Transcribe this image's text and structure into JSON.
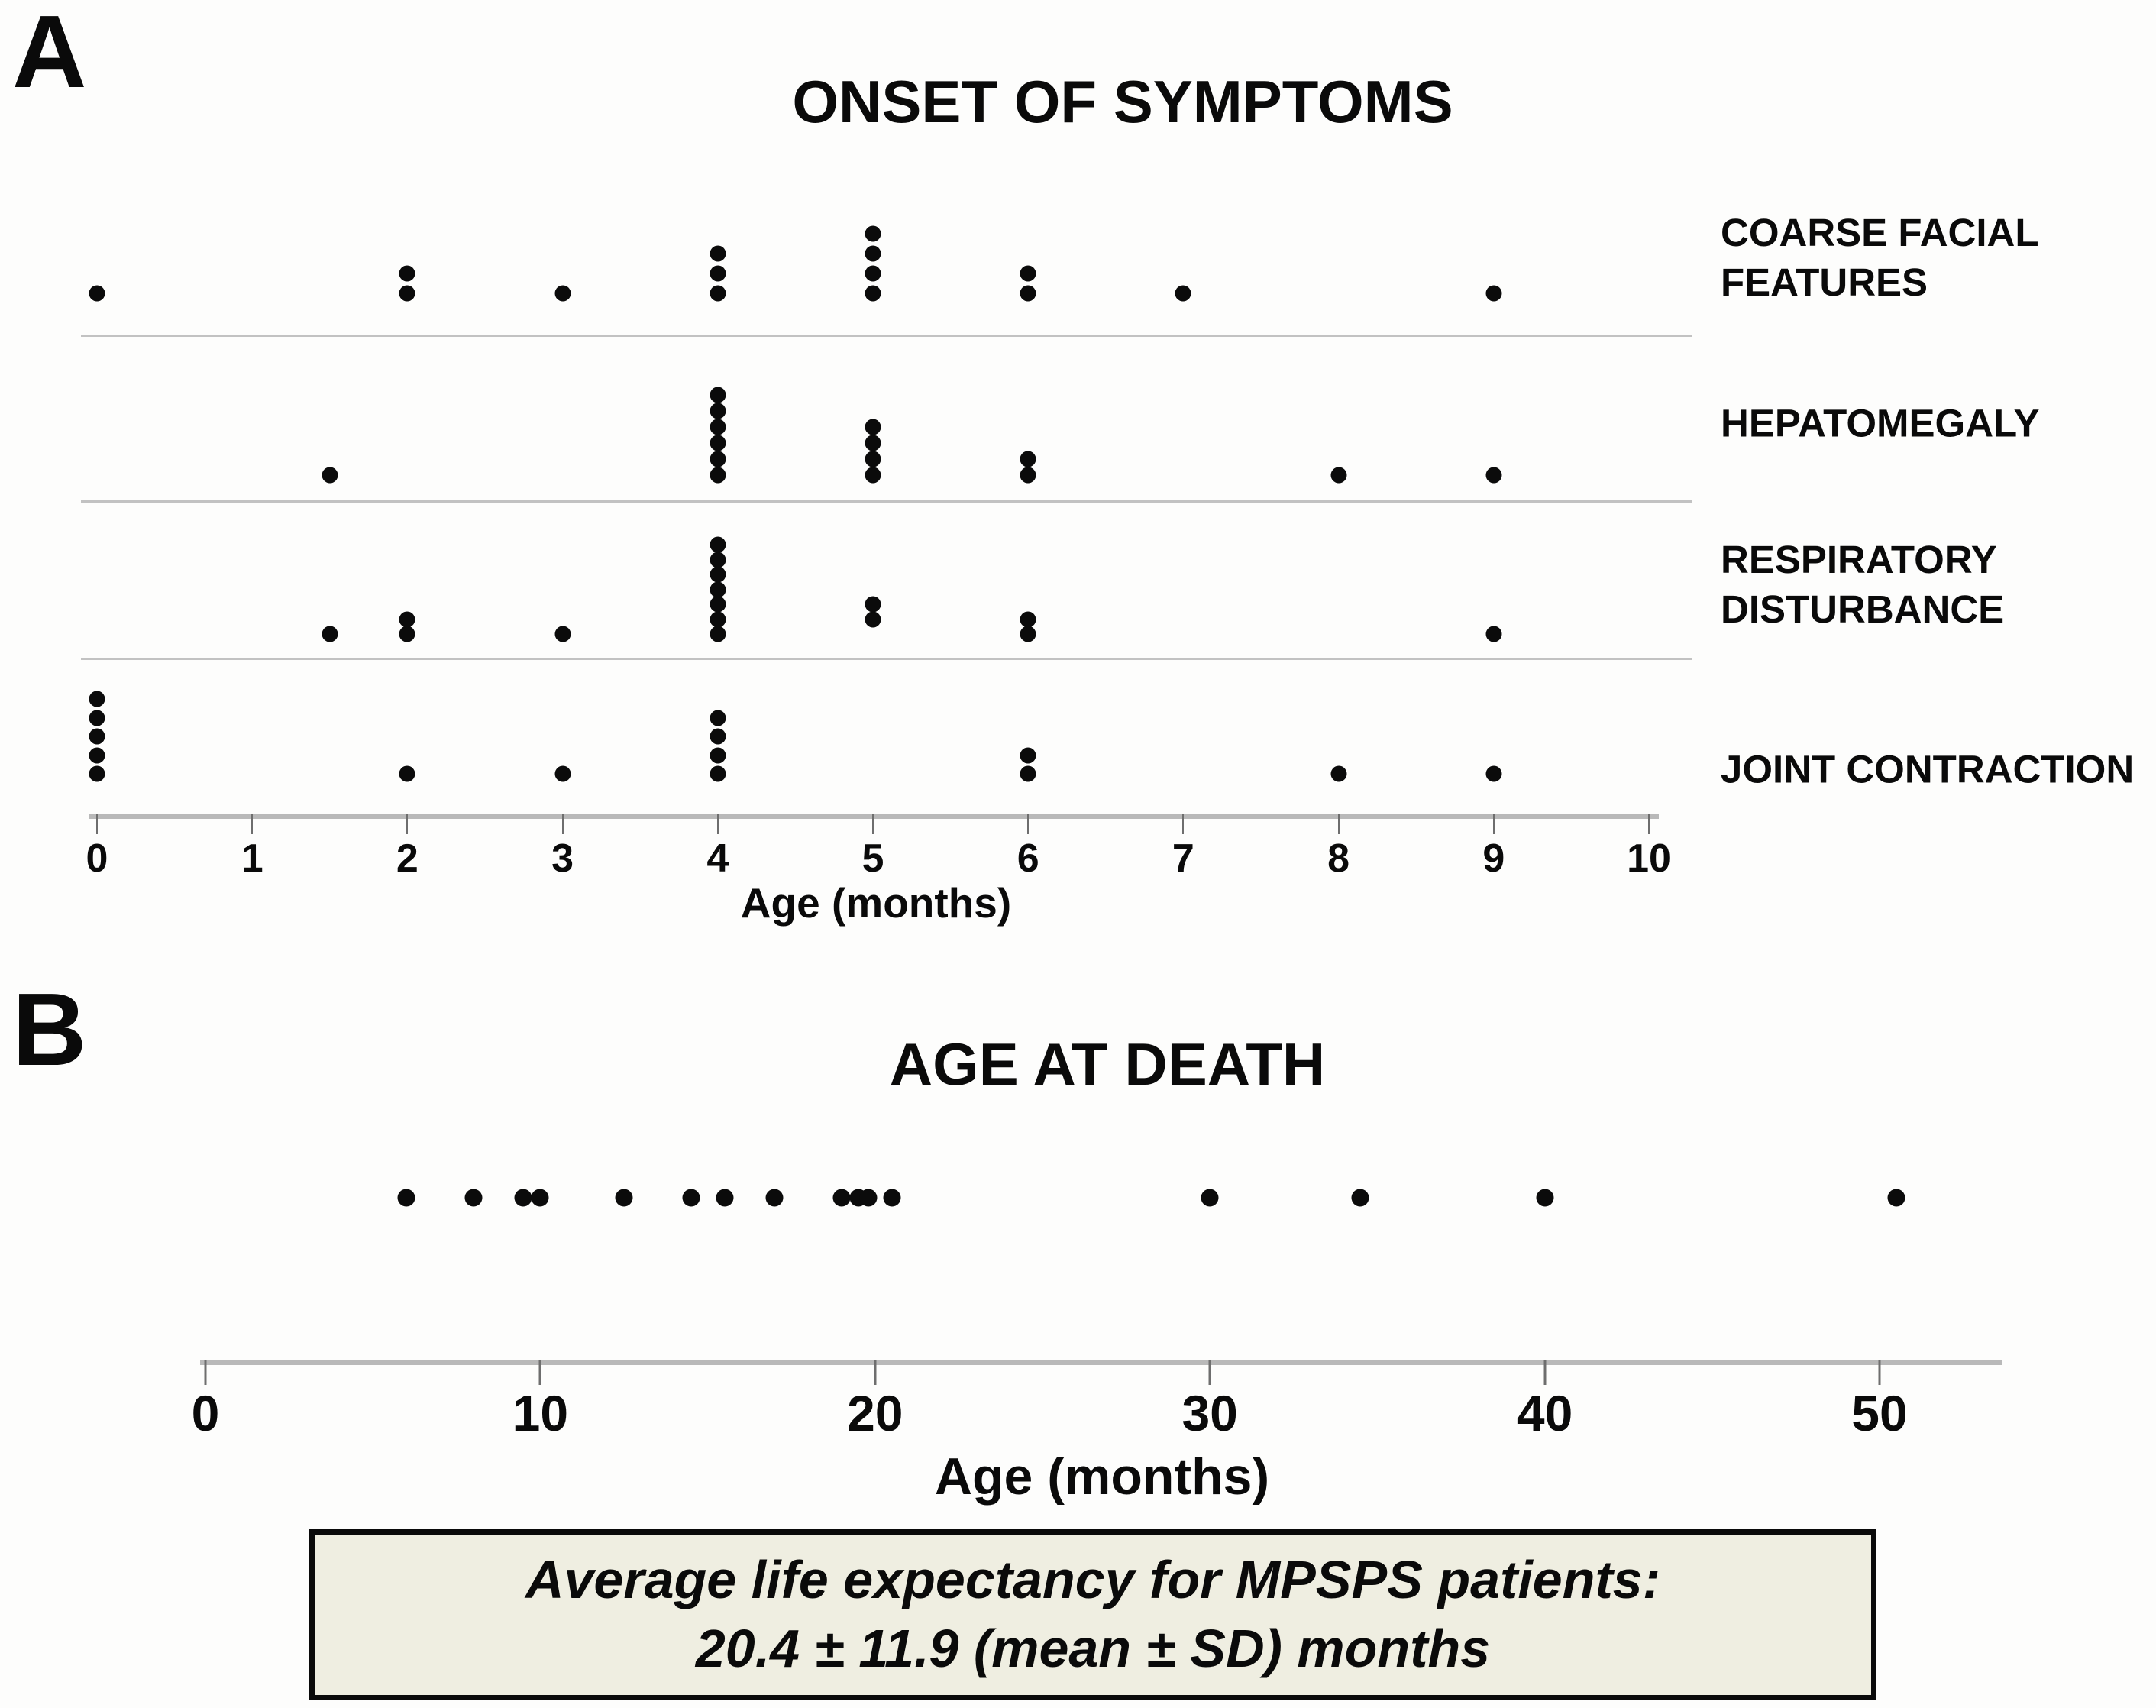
{
  "panels": {
    "a": {
      "letter": "A"
    },
    "b": {
      "letter": "B"
    }
  },
  "chart_data": [
    {
      "type": "scatter",
      "panel": "A",
      "title": "ONSET OF SYMPTOMS",
      "xlabel": "Age (months)",
      "xlim": [
        0,
        10
      ],
      "xticks": [
        0,
        1,
        2,
        3,
        4,
        5,
        6,
        7,
        8,
        9,
        10
      ],
      "grid": false,
      "legend_position": "right",
      "series": [
        {
          "name": "COARSE FACIAL\nFEATURES",
          "groups": [
            {
              "x": 0,
              "n": 1
            },
            {
              "x": 2,
              "n": 2
            },
            {
              "x": 3,
              "n": 1
            },
            {
              "x": 4,
              "n": 3
            },
            {
              "x": 5,
              "n": 4
            },
            {
              "x": 6,
              "n": 2
            },
            {
              "x": 7,
              "n": 1
            },
            {
              "x": 9,
              "n": 1
            }
          ]
        },
        {
          "name": "HEPATOMEGALY",
          "groups": [
            {
              "x": 1.5,
              "n": 1
            },
            {
              "x": 4,
              "n": 6
            },
            {
              "x": 5,
              "n": 4
            },
            {
              "x": 6,
              "n": 2
            },
            {
              "x": 8,
              "n": 1
            },
            {
              "x": 9,
              "n": 1
            }
          ]
        },
        {
          "name": "RESPIRATORY\nDISTURBANCE",
          "groups": [
            {
              "x": 1.5,
              "n": 1
            },
            {
              "x": 2,
              "n": 2
            },
            {
              "x": 3,
              "n": 1
            },
            {
              "x": 4,
              "n": 7
            },
            {
              "x": 5,
              "n": 2,
              "start": 1
            },
            {
              "x": 6,
              "n": 2
            },
            {
              "x": 9,
              "n": 1
            }
          ]
        },
        {
          "name": "JOINT CONTRACTION",
          "groups": [
            {
              "x": 0,
              "n": 5
            },
            {
              "x": 2,
              "n": 1
            },
            {
              "x": 3,
              "n": 1
            },
            {
              "x": 4,
              "n": 4
            },
            {
              "x": 6,
              "n": 2
            },
            {
              "x": 8,
              "n": 1
            },
            {
              "x": 9,
              "n": 1
            }
          ]
        }
      ]
    },
    {
      "type": "scatter",
      "panel": "B",
      "title": "AGE AT DEATH",
      "xlabel": "Age (months)",
      "xlim": [
        0,
        55
      ],
      "xticks": [
        0,
        10,
        20,
        30,
        40,
        50
      ],
      "grid": false,
      "values": [
        6,
        8,
        9.5,
        10,
        12.5,
        14.5,
        15.5,
        17,
        19,
        19.5,
        19.8,
        20.5,
        30,
        34.5,
        40,
        50.5
      ]
    }
  ],
  "annotation": {
    "line1": "Average life expectancy for MPSPS patients:",
    "line2": "20.4 ± 11.9 (mean ± SD) months"
  },
  "colors": {
    "dot": "#0b0b0b",
    "axis": "#b9b9b9",
    "separator": "#c2c2c2",
    "tick": "#6e6e6e",
    "box_bg": "#efeee1",
    "box_border": "#0a0a0a",
    "background": "#fdfdfc",
    "text": "#000000"
  }
}
